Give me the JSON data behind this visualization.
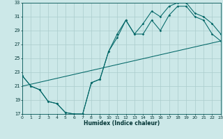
{
  "xlabel": "Humidex (Indice chaleur)",
  "bg_color": "#cce8e8",
  "grid_color": "#aacccc",
  "line_color": "#006666",
  "xlim": [
    0,
    23
  ],
  "ylim": [
    17,
    33
  ],
  "xticks": [
    0,
    1,
    2,
    3,
    4,
    5,
    6,
    7,
    8,
    9,
    10,
    11,
    12,
    13,
    14,
    15,
    16,
    17,
    18,
    19,
    20,
    21,
    22,
    23
  ],
  "yticks": [
    17,
    19,
    21,
    23,
    25,
    27,
    29,
    31,
    33
  ],
  "curve1_x": [
    0,
    1,
    2,
    3,
    4,
    5,
    6,
    7,
    8,
    9,
    10,
    11,
    12,
    13,
    14,
    15,
    16,
    17,
    18,
    19,
    20,
    21,
    22,
    23
  ],
  "curve1_y": [
    22.5,
    21.0,
    20.5,
    18.8,
    18.5,
    17.2,
    17.0,
    17.0,
    21.5,
    22.0,
    26.0,
    28.0,
    30.5,
    28.5,
    28.5,
    30.5,
    29.0,
    31.2,
    32.5,
    32.5,
    31.0,
    30.5,
    28.5,
    27.5
  ],
  "curve2_x": [
    0,
    1,
    2,
    3,
    4,
    5,
    6,
    7,
    8,
    9,
    10,
    11,
    12,
    13,
    14,
    15,
    16,
    17,
    18,
    19,
    20,
    21,
    22,
    23
  ],
  "curve2_y": [
    22.5,
    21.0,
    20.5,
    18.8,
    18.5,
    17.2,
    17.0,
    17.0,
    21.5,
    22.0,
    26.0,
    28.5,
    30.5,
    28.5,
    30.0,
    31.8,
    31.0,
    32.5,
    33.0,
    33.0,
    31.5,
    31.0,
    30.0,
    28.5
  ],
  "line3_x": [
    0,
    23
  ],
  "line3_y": [
    21.0,
    27.5
  ]
}
